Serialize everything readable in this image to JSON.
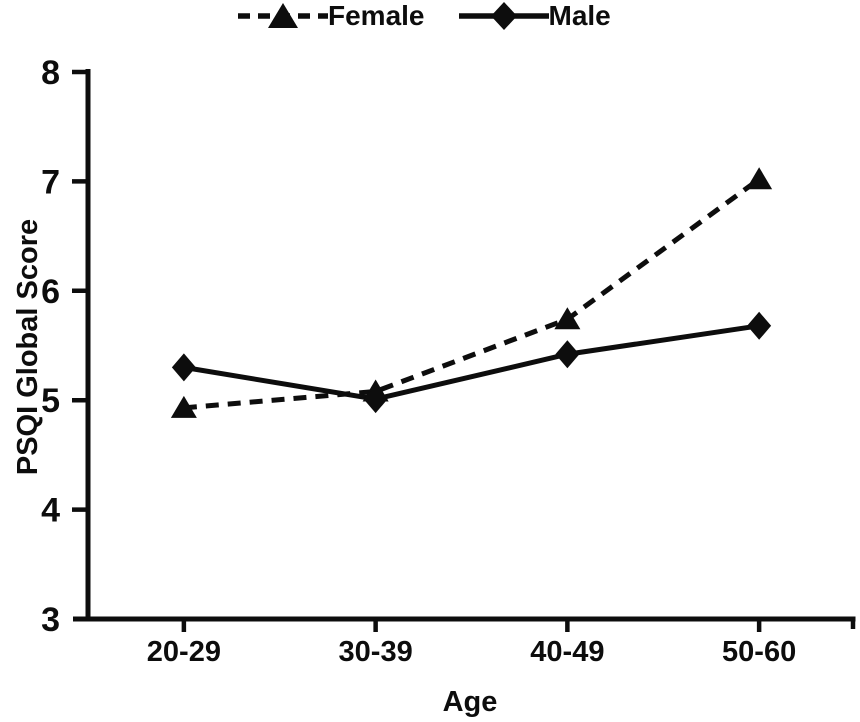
{
  "figure": {
    "background_color": "#ffffff",
    "ink_color": "#0d0d0d"
  },
  "legend": {
    "position": "top",
    "items": [
      {
        "label": "Female",
        "marker": "triangle",
        "line_style": "dashed"
      },
      {
        "label": "Male",
        "marker": "diamond",
        "line_style": "solid"
      }
    ]
  },
  "chart_data": {
    "type": "line",
    "title": "",
    "xlabel": "Age",
    "ylabel": "PSQI Global Score",
    "categories": [
      "20-29",
      "30-39",
      "40-49",
      "50-60"
    ],
    "series": [
      {
        "name": "Female",
        "marker": "triangle",
        "line_style": "dashed",
        "values": [
          4.93,
          5.08,
          5.74,
          7.02
        ]
      },
      {
        "name": "Male",
        "marker": "diamond",
        "line_style": "solid",
        "values": [
          5.3,
          5.01,
          5.42,
          5.68
        ]
      }
    ],
    "ylim": [
      3,
      8
    ],
    "yticks": [
      3,
      4,
      5,
      6,
      7,
      8
    ],
    "grid": false,
    "legend_position": "top"
  }
}
